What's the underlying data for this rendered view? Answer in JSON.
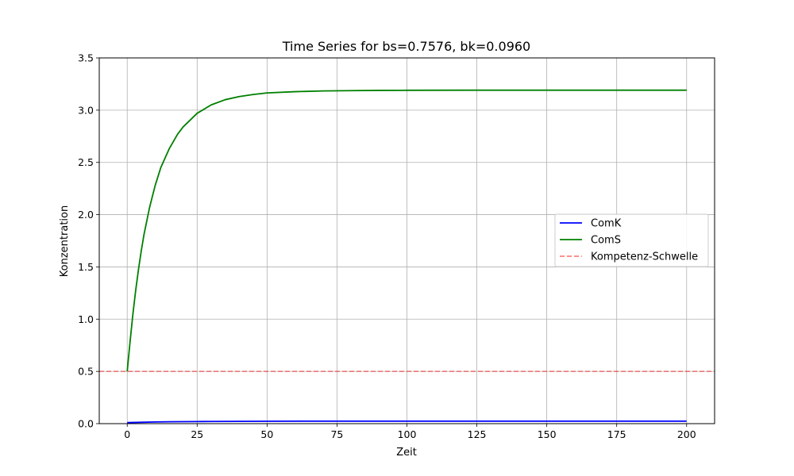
{
  "chart_data": {
    "type": "line",
    "title": "Time Series for bs=0.7576, bk=0.0960",
    "xlabel": "Zeit",
    "ylabel": "Konzentration",
    "xlim": [
      -10,
      210
    ],
    "ylim": [
      0,
      3.5
    ],
    "x_ticks": [
      0,
      25,
      50,
      75,
      100,
      125,
      150,
      175,
      200
    ],
    "y_ticks": [
      0.0,
      0.5,
      1.0,
      1.5,
      2.0,
      2.5,
      3.0,
      3.5
    ],
    "x_tick_labels": [
      "0",
      "25",
      "50",
      "75",
      "100",
      "125",
      "150",
      "175",
      "200"
    ],
    "y_tick_labels": [
      "0.0",
      "0.5",
      "1.0",
      "1.5",
      "2.0",
      "2.5",
      "3.0",
      "3.5"
    ],
    "grid": true,
    "legend_position": "center-right",
    "series": [
      {
        "name": "ComK",
        "color": "#0000ff",
        "style": "solid",
        "x": [
          0,
          5,
          10,
          15,
          20,
          25,
          30,
          40,
          50,
          75,
          100,
          125,
          150,
          175,
          200
        ],
        "y": [
          0.01,
          0.013,
          0.016,
          0.018,
          0.019,
          0.02,
          0.021,
          0.022,
          0.023,
          0.024,
          0.024,
          0.024,
          0.024,
          0.024,
          0.024
        ]
      },
      {
        "name": "ComS",
        "color": "#008000",
        "style": "solid",
        "x": [
          0,
          1,
          2,
          3,
          4,
          5,
          6,
          8,
          10,
          12,
          15,
          18,
          20,
          25,
          30,
          35,
          40,
          45,
          50,
          60,
          70,
          80,
          90,
          100,
          120,
          140,
          160,
          180,
          200
        ],
        "y": [
          0.5,
          0.78,
          1.04,
          1.27,
          1.47,
          1.65,
          1.81,
          2.07,
          2.28,
          2.45,
          2.63,
          2.77,
          2.84,
          2.97,
          3.05,
          3.1,
          3.13,
          3.15,
          3.165,
          3.177,
          3.184,
          3.187,
          3.189,
          3.19,
          3.191,
          3.191,
          3.191,
          3.191,
          3.191
        ]
      },
      {
        "name": "Kompetenz-Schwelle",
        "color": "#ff0000",
        "style": "dashed",
        "opacity": 0.5,
        "hline": 0.5
      }
    ]
  }
}
